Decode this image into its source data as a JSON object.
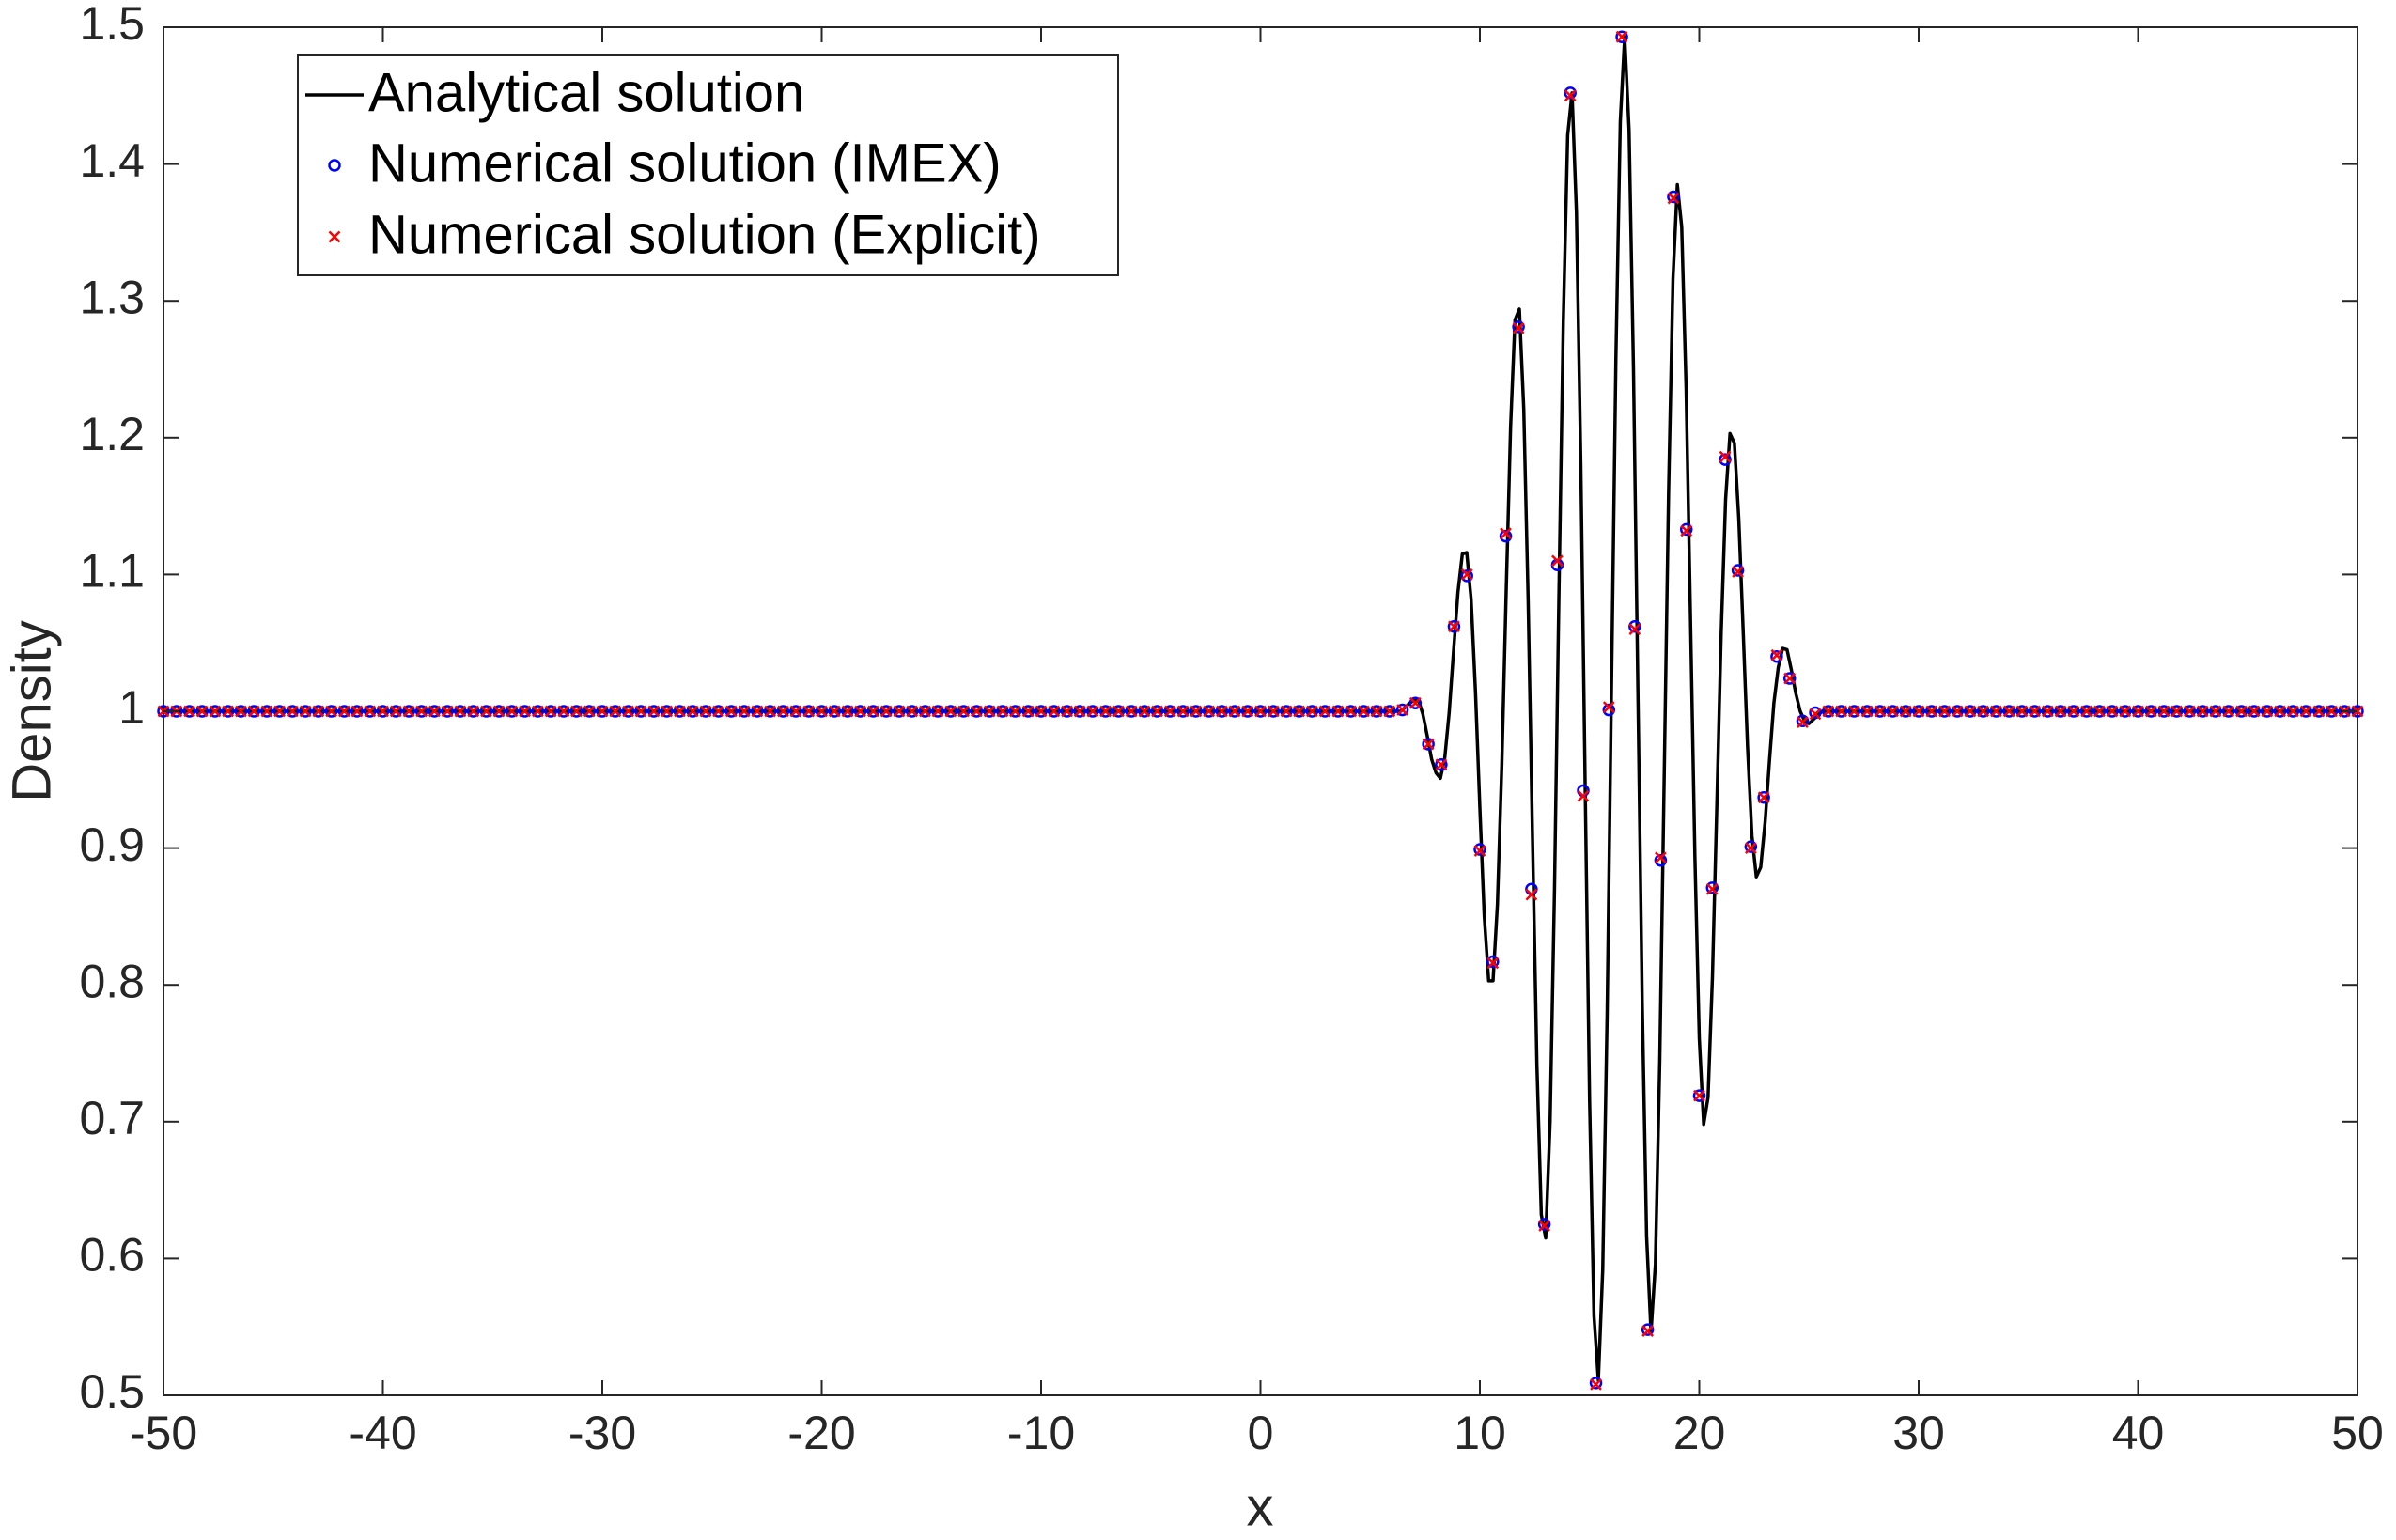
{
  "chart_data": {
    "type": "line",
    "xlabel": "x",
    "ylabel": "Density",
    "xlim": [
      -50,
      50
    ],
    "ylim": [
      0.5,
      1.5
    ],
    "xticks": [
      -50,
      -40,
      -30,
      -20,
      -10,
      0,
      10,
      20,
      30,
      40,
      50
    ],
    "yticks": [
      0.5,
      0.6,
      0.7,
      0.8,
      0.9,
      1,
      1.1,
      1.2,
      1.3,
      1.4,
      1.5
    ],
    "legend": "upper left",
    "x": [
      -50,
      -49.41,
      -48.82,
      -48.24,
      -47.65,
      -47.06,
      -46.47,
      -45.88,
      -45.29,
      -44.71,
      -44.12,
      -43.53,
      -42.94,
      -42.35,
      -41.76,
      -41.18,
      -40.59,
      -40,
      -39.41,
      -38.82,
      -38.24,
      -37.65,
      -37.06,
      -36.47,
      -35.88,
      -35.29,
      -34.71,
      -34.12,
      -33.53,
      -32.94,
      -32.35,
      -31.76,
      -31.18,
      -30.59,
      -30,
      -29.41,
      -28.82,
      -28.24,
      -27.65,
      -27.06,
      -26.47,
      -25.88,
      -25.29,
      -24.71,
      -24.12,
      -23.53,
      -22.94,
      -22.35,
      -21.76,
      -21.18,
      -20.59,
      -20,
      -19.41,
      -18.82,
      -18.24,
      -17.65,
      -17.06,
      -16.47,
      -15.88,
      -15.29,
      -14.71,
      -14.12,
      -13.53,
      -12.94,
      -12.35,
      -11.76,
      -11.18,
      -10.59,
      -10,
      -9.41,
      -8.82,
      -8.24,
      -7.65,
      -7.06,
      -6.47,
      -5.88,
      -5.29,
      -4.71,
      -4.12,
      -3.53,
      -2.94,
      -2.35,
      -1.76,
      -1.18,
      -0.59,
      0,
      0.59,
      1.18,
      1.76,
      2.35,
      2.94,
      3.53,
      4.12,
      4.71,
      5.29,
      5.88,
      6.47,
      7.06,
      7.65,
      8.24,
      8.82,
      9.41,
      10,
      10.59,
      11.18,
      11.76,
      12.35,
      12.94,
      13.53,
      14.12,
      14.71,
      15.29,
      15.88,
      16.47,
      17.06,
      17.65,
      18.24,
      18.82,
      19.41,
      20,
      20.59,
      21.18,
      21.76,
      22.35,
      22.94,
      23.53,
      24.12,
      24.71,
      25.29,
      25.88,
      26.47,
      27.06,
      27.65,
      28.24,
      28.82,
      29.41,
      30,
      30.59,
      31.18,
      31.76,
      32.35,
      32.94,
      33.53,
      34.12,
      34.71,
      35.29,
      35.88,
      36.47,
      37.06,
      37.65,
      38.24,
      38.82,
      39.41,
      40,
      40.59,
      41.18,
      41.76,
      42.35,
      42.94,
      43.53,
      44.12,
      44.71,
      45.29,
      45.88,
      46.47,
      47.06,
      47.65,
      48.24,
      48.82,
      49.41,
      50
    ],
    "series": [
      {
        "name": "Analytical solution",
        "color": "#000000",
        "marker": "line",
        "x": [
          -50,
          6.4,
          6.6,
          6.8,
          7,
          7.2,
          7.4,
          7.6,
          7.8,
          8,
          8.2,
          8.4,
          8.6,
          8.8,
          9,
          9.2,
          9.4,
          9.6,
          9.8,
          10,
          10.2,
          10.4,
          10.6,
          10.8,
          11,
          11.2,
          11.4,
          11.6,
          11.8,
          12,
          12.2,
          12.4,
          12.6,
          12.8,
          13,
          13.2,
          13.4,
          13.6,
          13.8,
          14,
          14.2,
          14.4,
          14.6,
          14.8,
          15,
          15.2,
          15.4,
          15.6,
          15.8,
          16,
          16.2,
          16.4,
          16.6,
          16.8,
          17,
          17.2,
          17.4,
          17.6,
          17.8,
          18,
          18.2,
          18.4,
          18.6,
          18.8,
          19,
          19.2,
          19.4,
          19.6,
          19.8,
          20,
          20.2,
          20.4,
          20.6,
          20.8,
          21,
          21.2,
          21.4,
          21.6,
          21.8,
          22,
          22.2,
          22.4,
          22.6,
          22.8,
          23,
          23.2,
          23.4,
          23.6,
          23.8,
          24,
          24.2,
          24.4,
          24.6,
          24.8,
          25,
          25.2,
          25.4,
          25.6,
          50
        ],
        "values": [
          1,
          1.0,
          1.003,
          1.006,
          1.008,
          1.008,
          0.998,
          0.982,
          0.965,
          0.955,
          0.951,
          0.966,
          0.999,
          1.044,
          1.087,
          1.115,
          1.116,
          1.082,
          1.014,
          0.929,
          0.85,
          0.803,
          0.803,
          0.859,
          0.961,
          1.088,
          1.208,
          1.286,
          1.294,
          1.221,
          1.081,
          0.906,
          0.741,
          0.632,
          0.615,
          0.7,
          0.869,
          1.083,
          1.284,
          1.421,
          1.452,
          1.365,
          1.181,
          0.944,
          0.716,
          0.558,
          0.511,
          0.592,
          0.778,
          1.02,
          1.258,
          1.431,
          1.493,
          1.425,
          1.251,
          1.018,
          0.787,
          0.616,
          0.546,
          0.596,
          0.745,
          0.951,
          1.159,
          1.316,
          1.385,
          1.354,
          1.236,
          1.067,
          0.894,
          0.761,
          0.698,
          0.718,
          0.806,
          0.931,
          1.058,
          1.155,
          1.203,
          1.196,
          1.141,
          1.059,
          0.974,
          0.909,
          0.879,
          0.886,
          0.919,
          0.964,
          1.006,
          1.032,
          1.046,
          1.045,
          1.03,
          1.013,
          1.0,
          0.993,
          0.991,
          0.994,
          0.997,
          1.0,
          1
        ]
      },
      {
        "name": "Numerical solution (IMEX)",
        "color": "#0000ff",
        "marker": "circle",
        "values": [
          1,
          1,
          1,
          1,
          1,
          1,
          1,
          1,
          1,
          1,
          1,
          1,
          1,
          1,
          1,
          1,
          1,
          1,
          1,
          1,
          1,
          1,
          1,
          1,
          1,
          1,
          1,
          1,
          1,
          1,
          1,
          1,
          1,
          1,
          1,
          1,
          1,
          1,
          1,
          1,
          1,
          1,
          1,
          1,
          1,
          1,
          1,
          1,
          1,
          1,
          1,
          1,
          1,
          1,
          1,
          1,
          1,
          1,
          1,
          1,
          1,
          1,
          1,
          1,
          1,
          1,
          1,
          1,
          1,
          1,
          1,
          1,
          1,
          1,
          1,
          1,
          1,
          1,
          1,
          1,
          1,
          1,
          1,
          1,
          1,
          1,
          1,
          1,
          1,
          1,
          1,
          1,
          1,
          1,
          1,
          1,
          1.001,
          1.006,
          0.976,
          0.961,
          1.062,
          1.099,
          0.899,
          0.817,
          1.128,
          1.281,
          0.87,
          0.625,
          1.107,
          1.452,
          0.942,
          0.509,
          1.001,
          1.493,
          1.062,
          0.548,
          0.891,
          1.376,
          1.133,
          0.719,
          0.871,
          1.184,
          1.103,
          0.901,
          0.937,
          1.04,
          1.024,
          0.993,
          0.999,
          1,
          1,
          1,
          1,
          1,
          1,
          1,
          1,
          1,
          1,
          1,
          1,
          1,
          1,
          1,
          1,
          1,
          1,
          1,
          1,
          1,
          1,
          1,
          1,
          1,
          1,
          1,
          1,
          1,
          1,
          1,
          1,
          1,
          1,
          1,
          1,
          1,
          1,
          1,
          1,
          1,
          1
        ]
      },
      {
        "name": "Numerical solution (Explicit)",
        "color": "#ff0000",
        "marker": "x",
        "values": [
          1,
          1,
          1,
          1,
          1,
          1,
          1,
          1,
          1,
          1,
          1,
          1,
          1,
          1,
          1,
          1,
          1,
          1,
          1,
          1,
          1,
          1,
          1,
          1,
          1,
          1,
          1,
          1,
          1,
          1,
          1,
          1,
          1,
          1,
          1,
          1,
          1,
          1,
          1,
          1,
          1,
          1,
          1,
          1,
          1,
          1,
          1,
          1,
          1,
          1,
          1,
          1,
          1,
          1,
          1,
          1,
          1,
          1,
          1,
          1,
          1,
          1,
          1,
          1,
          1,
          1,
          1,
          1,
          1,
          1,
          1,
          1,
          1,
          1,
          1,
          1,
          1,
          1,
          1,
          1,
          1,
          1,
          1,
          1,
          1,
          1,
          1,
          1,
          1,
          1,
          1,
          1,
          1,
          1,
          1,
          1,
          1.001,
          1.006,
          0.976,
          0.961,
          1.062,
          1.1,
          0.898,
          0.816,
          1.13,
          1.28,
          0.866,
          0.624,
          1.11,
          1.45,
          0.938,
          0.508,
          1.003,
          1.493,
          1.06,
          0.547,
          0.893,
          1.375,
          1.132,
          0.719,
          0.87,
          1.186,
          1.102,
          0.9,
          0.937,
          1.041,
          1.024,
          0.992,
          0.998,
          1,
          1,
          1,
          1,
          1,
          1,
          1,
          1,
          1,
          1,
          1,
          1,
          1,
          1,
          1,
          1,
          1,
          1,
          1,
          1,
          1,
          1,
          1,
          1,
          1,
          1,
          1,
          1,
          1,
          1,
          1,
          1,
          1,
          1,
          1,
          1,
          1,
          1,
          1,
          1,
          1,
          1
        ]
      }
    ]
  }
}
